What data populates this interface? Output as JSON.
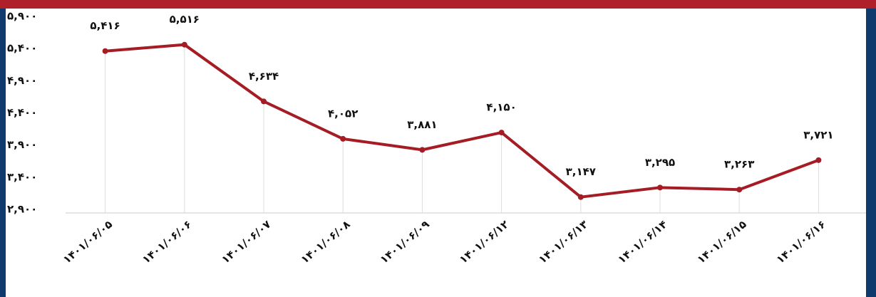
{
  "chart_data": {
    "type": "line",
    "categories": [
      "۱۴۰۱/۰۶/۰۵",
      "۱۴۰۱/۰۶/۰۶",
      "۱۴۰۱/۰۶/۰۷",
      "۱۴۰۱/۰۶/۰۸",
      "۱۴۰۱/۰۶/۰۹",
      "۱۴۰۱/۰۶/۱۲",
      "۱۴۰۱/۰۶/۱۳",
      "۱۴۰۱/۰۶/۱۴",
      "۱۴۰۱/۰۶/۱۵",
      "۱۴۰۱/۰۶/۱۶"
    ],
    "values": [
      5416,
      5516,
      4634,
      4052,
      3881,
      4150,
      3147,
      3295,
      3263,
      3721
    ],
    "value_labels": [
      "۵,۴۱۶",
      "۵,۵۱۶",
      "۴,۶۳۴",
      "۴,۰۵۲",
      "۳,۸۸۱",
      "۴,۱۵۰",
      "۳,۱۴۷",
      "۳,۲۹۵",
      "۳,۲۶۳",
      "۳,۷۲۱"
    ],
    "color": "#a51c24",
    "ylim": [
      2900,
      5900
    ],
    "yticks": [
      {
        "value": 2900,
        "label": "۲,۹۰۰"
      },
      {
        "value": 3400,
        "label": "۳,۴۰۰"
      },
      {
        "value": 3900,
        "label": "۳,۹۰۰"
      },
      {
        "value": 4400,
        "label": "۴,۴۰۰"
      },
      {
        "value": 4900,
        "label": "۴,۹۰۰"
      },
      {
        "value": 5400,
        "label": "۵,۴۰۰"
      },
      {
        "value": 5900,
        "label": "۵,۹۰۰"
      }
    ],
    "grid": true
  }
}
